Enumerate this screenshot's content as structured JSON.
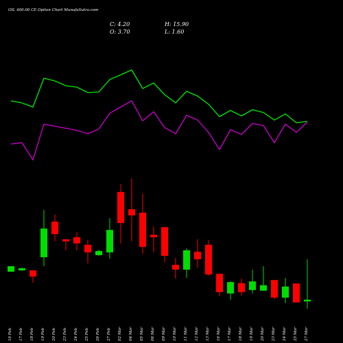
{
  "title": "OIL 400.00 CE Option Chart MunafaSutra.com",
  "ohlc": {
    "close": "C: 4.20",
    "open": "O: 3.70",
    "high": "H: 15.90",
    "low": "L: 1.60"
  },
  "chart_data": [
    {
      "type": "candlestick",
      "categories": [
        "16 Feb",
        "17 Feb",
        "18 Feb",
        "19 Feb",
        "20 Feb",
        "23 Feb",
        "24 Feb",
        "25 Feb",
        "26 Feb",
        "27 Feb",
        "02 Mar",
        "04 Mar",
        "05 Mar",
        "06 Mar",
        "09 Mar",
        "10 Mar",
        "11 Mar",
        "12 Mar",
        "13 Mar",
        "16 Mar",
        "17 Mar",
        "18 Mar",
        "19 Mar",
        "20 Mar",
        "23 Mar",
        "24 Mar",
        "25 Mar",
        "27 Mar"
      ],
      "open": [
        12.3,
        12.7,
        12.7,
        16.5,
        26.8,
        21.7,
        22.3,
        20.1,
        17.1,
        17.9,
        35.4,
        30.4,
        29.4,
        23.0,
        25.2,
        14.3,
        12.9,
        18.1,
        20.1,
        11.7,
        6.0,
        9.0,
        7.0,
        6.8,
        9.9,
        4.8,
        8.9,
        3.7
      ],
      "high": [
        13.9,
        13.5,
        12.7,
        30.2,
        28.8,
        21.7,
        23.8,
        21.5,
        18.7,
        27.8,
        37.7,
        39.3,
        35.0,
        25.4,
        25.2,
        16.3,
        19.1,
        21.7,
        21.5,
        11.7,
        9.5,
        10.3,
        12.9,
        13.9,
        9.9,
        10.5,
        8.9,
        15.9
      ],
      "low": [
        12.3,
        12.5,
        9.1,
        13.9,
        21.1,
        18.5,
        18.5,
        14.7,
        16.9,
        16.1,
        20.5,
        21.1,
        17.5,
        17.9,
        15.1,
        10.3,
        10.5,
        13.5,
        11.1,
        5.2,
        4.2,
        5.4,
        6.0,
        6.8,
        4.4,
        3.2,
        3.4,
        1.6
      ],
      "close": [
        13.9,
        13.3,
        10.9,
        24.8,
        23.2,
        21.1,
        20.5,
        17.9,
        18.3,
        24.4,
        26.4,
        28.6,
        19.5,
        22.3,
        16.9,
        12.9,
        18.5,
        15.9,
        11.5,
        6.4,
        9.3,
        6.4,
        9.5,
        8.4,
        4.8,
        8.0,
        3.4,
        4.2
      ],
      "up_color": "#00dd00",
      "down_color": "#ff0000",
      "ylim": [
        0,
        42
      ]
    },
    {
      "type": "line",
      "series": [
        {
          "color": "#00ee00",
          "values": [
            113,
            110,
            104,
            146,
            142,
            135,
            133,
            125,
            126,
            144,
            151,
            158,
            131,
            139,
            122,
            110,
            127,
            120,
            108,
            90,
            99,
            91,
            100,
            96,
            85,
            94,
            81,
            83
          ]
        },
        {
          "color": "#cc00cc",
          "values": [
            50,
            52,
            27,
            79,
            76,
            73,
            70,
            65,
            72,
            95,
            104,
            113,
            84,
            97,
            74,
            65,
            92,
            85,
            67,
            42,
            71,
            64,
            80,
            77,
            52,
            79,
            67,
            82
          ]
        }
      ],
      "ylim": [
        0,
        180
      ]
    }
  ]
}
